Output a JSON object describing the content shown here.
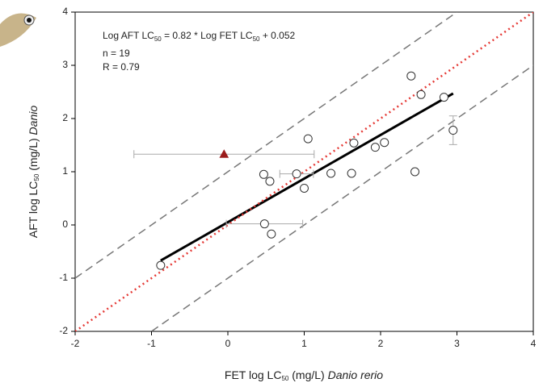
{
  "chart_data": {
    "type": "scatter",
    "annotation": {
      "equation": [
        "Log AFT LC",
        "50",
        " = 0.82 * Log FET LC",
        "50",
        " + 0.052"
      ],
      "n": "n = 19",
      "r": "R = 0.79"
    },
    "xlabel": [
      "FET log LC",
      "50",
      " (mg/L) ",
      "Danio rerio"
    ],
    "ylabel": [
      "AFT log LC",
      "50",
      " (mg/L) ",
      "Danio"
    ],
    "xlim": [
      -2,
      4
    ],
    "ylim": [
      -2,
      4
    ],
    "xticks": [
      -2,
      -1,
      0,
      1,
      2,
      3,
      4
    ],
    "yticks": [
      -2,
      -1,
      0,
      1,
      2,
      3,
      4
    ],
    "series": [
      {
        "marker": "circle",
        "color": "#ffffff",
        "x": [
          -0.88,
          0.47,
          0.55,
          0.48,
          0.57,
          0.9,
          1.0,
          1.05,
          1.35,
          1.62,
          1.65,
          1.93,
          2.05,
          2.4,
          2.45,
          2.53,
          2.83,
          2.95
        ],
        "y": [
          -0.76,
          0.95,
          0.82,
          0.02,
          -0.17,
          0.96,
          0.69,
          1.62,
          0.97,
          0.97,
          1.54,
          1.46,
          1.55,
          2.8,
          1.0,
          2.45,
          2.4,
          1.78
        ],
        "xerr": [
          null,
          null,
          null,
          0.5,
          null,
          0.22,
          null,
          null,
          null,
          null,
          null,
          null,
          null,
          null,
          null,
          null,
          null,
          null
        ],
        "yerr": [
          null,
          null,
          null,
          null,
          null,
          null,
          null,
          null,
          null,
          null,
          null,
          null,
          null,
          null,
          null,
          null,
          null,
          0.27
        ]
      },
      {
        "marker": "triangle",
        "color": "#9b1c1c",
        "x": [
          -0.05
        ],
        "y": [
          1.33
        ],
        "xerr": [
          1.18
        ],
        "yerr": [
          null
        ]
      }
    ],
    "lines": [
      {
        "style": "solid",
        "color": "#000000",
        "x": [
          -0.88,
          2.95
        ],
        "y": [
          -0.67,
          2.47
        ]
      },
      {
        "style": "dotted",
        "color": "#e53935",
        "x": [
          -2,
          4
        ],
        "y": [
          -2,
          4
        ]
      },
      {
        "style": "dashed",
        "color": "#777777",
        "x": [
          -2,
          3
        ],
        "y": [
          -1,
          4
        ]
      },
      {
        "style": "dashed",
        "color": "#777777",
        "x": [
          -1,
          4
        ],
        "y": [
          -2,
          3
        ]
      }
    ]
  }
}
